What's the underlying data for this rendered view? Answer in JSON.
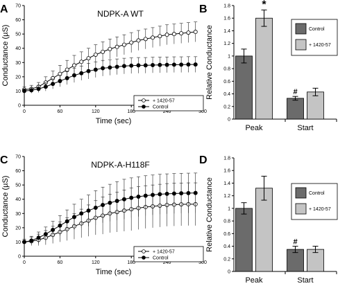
{
  "figure": {
    "panels": [
      {
        "letter": "A",
        "title": "NDPK-A WT",
        "ylabel": "Conductance (µS)",
        "xlabel": "Time (sec)"
      },
      {
        "letter": "B",
        "ylabel": "Relative Conductance"
      },
      {
        "letter": "C",
        "title": "NDPK-A-H118F",
        "ylabel": "Conductance (µS)",
        "xlabel": "Time (sec)"
      },
      {
        "letter": "D",
        "ylabel": "Relative Conductance"
      }
    ]
  },
  "chart_data": [
    {
      "type": "line",
      "panel": "A",
      "title": "NDPK-A WT",
      "xlabel": "Time (sec)",
      "ylabel": "Conductance (µS)",
      "xlim": [
        0,
        300
      ],
      "ylim": [
        0,
        70
      ],
      "xticks": [
        0,
        60,
        120,
        180,
        240,
        300
      ],
      "yticks": [
        0,
        10,
        20,
        30,
        40,
        50,
        60,
        70
      ],
      "legend_position": "bottom-right",
      "grid": false,
      "series": [
        {
          "name": "+ 1420-57",
          "marker": "open-circle",
          "x": [
            0,
            12,
            24,
            36,
            48,
            60,
            72,
            84,
            96,
            108,
            120,
            132,
            144,
            156,
            168,
            180,
            192,
            204,
            216,
            228,
            240,
            252,
            264,
            276,
            288
          ],
          "y": [
            11,
            11.5,
            13,
            16,
            19,
            22,
            25,
            28,
            30.5,
            33,
            35.5,
            37.5,
            39.5,
            41,
            42.5,
            44,
            45.5,
            46.5,
            47.5,
            48.5,
            49.5,
            50,
            50.5,
            51,
            51.5
          ],
          "err": [
            2,
            2.5,
            3,
            4,
            5,
            6,
            6.5,
            7,
            7,
            7,
            7,
            7,
            7,
            7,
            7,
            7,
            7,
            7,
            7,
            7,
            7,
            7,
            7,
            7,
            7
          ]
        },
        {
          "name": "Control",
          "marker": "filled-circle",
          "x": [
            0,
            12,
            24,
            36,
            48,
            60,
            72,
            84,
            96,
            108,
            120,
            132,
            144,
            156,
            168,
            180,
            192,
            204,
            216,
            228,
            240,
            252,
            264,
            276,
            288
          ],
          "y": [
            10,
            10.5,
            11.5,
            13,
            15,
            17,
            19,
            21,
            22.5,
            24,
            25,
            26,
            26.5,
            27,
            27.5,
            27.8,
            28,
            28,
            28.2,
            28.3,
            28.4,
            28.5,
            28.5,
            28.6,
            28.6
          ],
          "err": [
            1.5,
            2,
            2.5,
            3,
            3.5,
            4,
            4.5,
            5,
            5,
            5.5,
            5.5,
            5.5,
            5.5,
            5.5,
            5.5,
            5.5,
            5.5,
            5.5,
            5.5,
            5.5,
            5.5,
            5.5,
            5.5,
            5.5,
            5.5
          ]
        }
      ]
    },
    {
      "type": "bar",
      "panel": "B",
      "ylabel": "Relative Conductance",
      "ylim": [
        0,
        1.8
      ],
      "yticks": [
        0,
        0.2,
        0.4,
        0.6,
        0.8,
        1,
        1.2,
        1.4,
        1.6,
        1.8
      ],
      "categories": [
        "Peak",
        "Start"
      ],
      "legend_position": "top-right",
      "series": [
        {
          "name": "Control",
          "color": "#6b6b6b",
          "values": [
            1.0,
            0.33
          ],
          "err": [
            0.11,
            0.03
          ],
          "annotations": [
            "",
            "#"
          ]
        },
        {
          "name": "+ 1420-57",
          "color": "#c4c4c4",
          "values": [
            1.6,
            0.43
          ],
          "err": [
            0.13,
            0.06
          ],
          "annotations": [
            "*",
            ""
          ]
        }
      ]
    },
    {
      "type": "line",
      "panel": "C",
      "title": "NDPK-A-H118F",
      "xlabel": "Time (sec)",
      "ylabel": "Conductance (µS)",
      "xlim": [
        0,
        300
      ],
      "ylim": [
        0,
        70
      ],
      "xticks": [
        0,
        60,
        120,
        180,
        240,
        300
      ],
      "yticks": [
        0,
        10,
        20,
        30,
        40,
        50,
        60,
        70
      ],
      "legend_position": "bottom-right",
      "grid": false,
      "series": [
        {
          "name": "+ 1420-57",
          "marker": "open-circle",
          "x": [
            0,
            12,
            24,
            36,
            48,
            60,
            72,
            84,
            96,
            108,
            120,
            132,
            144,
            156,
            168,
            180,
            192,
            204,
            216,
            228,
            240,
            252,
            264,
            276,
            288
          ],
          "y": [
            10,
            10.5,
            11.5,
            13,
            15,
            17,
            19,
            21,
            23,
            25,
            27,
            28.5,
            30,
            31,
            32,
            33,
            33.8,
            34.5,
            35,
            35.5,
            36,
            36.2,
            36.4,
            36.5,
            36.5
          ],
          "err": [
            2,
            3,
            4,
            5,
            6,
            7,
            8,
            9,
            10,
            11,
            12,
            13,
            13.5,
            14,
            14.5,
            15,
            15,
            15,
            15,
            15,
            15,
            15,
            15,
            15,
            15
          ]
        },
        {
          "name": "Control",
          "marker": "filled-circle",
          "x": [
            0,
            12,
            24,
            36,
            48,
            60,
            72,
            84,
            96,
            108,
            120,
            132,
            144,
            156,
            168,
            180,
            192,
            204,
            216,
            228,
            240,
            252,
            264,
            276,
            288
          ],
          "y": [
            10,
            11,
            13,
            15.5,
            18.5,
            21.5,
            24.5,
            27.5,
            30,
            32,
            34,
            36,
            37.5,
            38.8,
            40,
            41,
            41.8,
            42.5,
            43,
            43.5,
            43.8,
            44,
            44.2,
            44.3,
            44.4
          ],
          "err": [
            2,
            3,
            4,
            5,
            6,
            7,
            8,
            9,
            10,
            11,
            12,
            12.5,
            13,
            13.5,
            14,
            14,
            14,
            14,
            14,
            14,
            14,
            14,
            14,
            14,
            14
          ]
        }
      ]
    },
    {
      "type": "bar",
      "panel": "D",
      "ylabel": "Relative Conductance",
      "ylim": [
        0,
        1.8
      ],
      "yticks": [
        0,
        0.2,
        0.4,
        0.6,
        0.8,
        1,
        1.2,
        1.4,
        1.6,
        1.8
      ],
      "categories": [
        "Peak",
        "Start"
      ],
      "legend_position": "bottom-right",
      "series": [
        {
          "name": "Control",
          "color": "#6b6b6b",
          "values": [
            1.0,
            0.35
          ],
          "err": [
            0.09,
            0.05
          ],
          "annotations": [
            "",
            "#"
          ]
        },
        {
          "name": "+ 1420-57",
          "color": "#c4c4c4",
          "values": [
            1.32,
            0.35
          ],
          "err": [
            0.19,
            0.05
          ],
          "annotations": [
            "",
            ""
          ]
        }
      ]
    }
  ]
}
